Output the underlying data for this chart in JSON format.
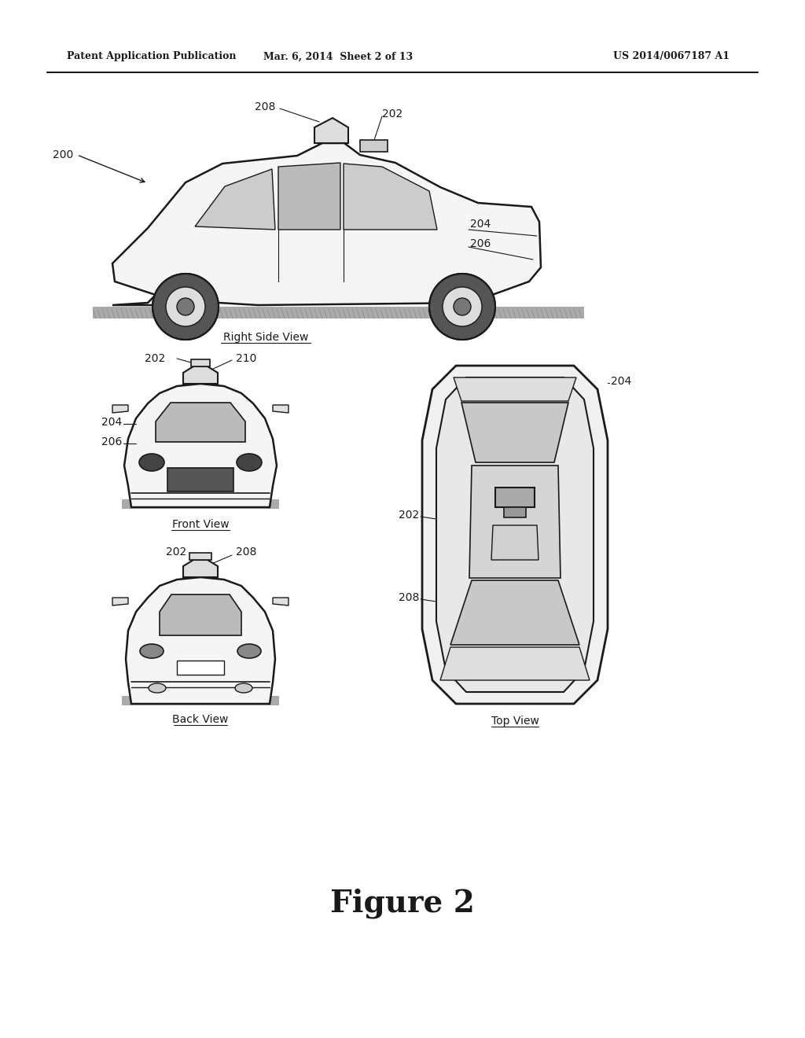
{
  "bg_color": "#ffffff",
  "line_color": "#1a1a1a",
  "header_left": "Patent Application Publication",
  "header_mid": "Mar. 6, 2014  Sheet 2 of 13",
  "header_right": "US 2014/0067187 A1",
  "figure_label": "Figure 2"
}
